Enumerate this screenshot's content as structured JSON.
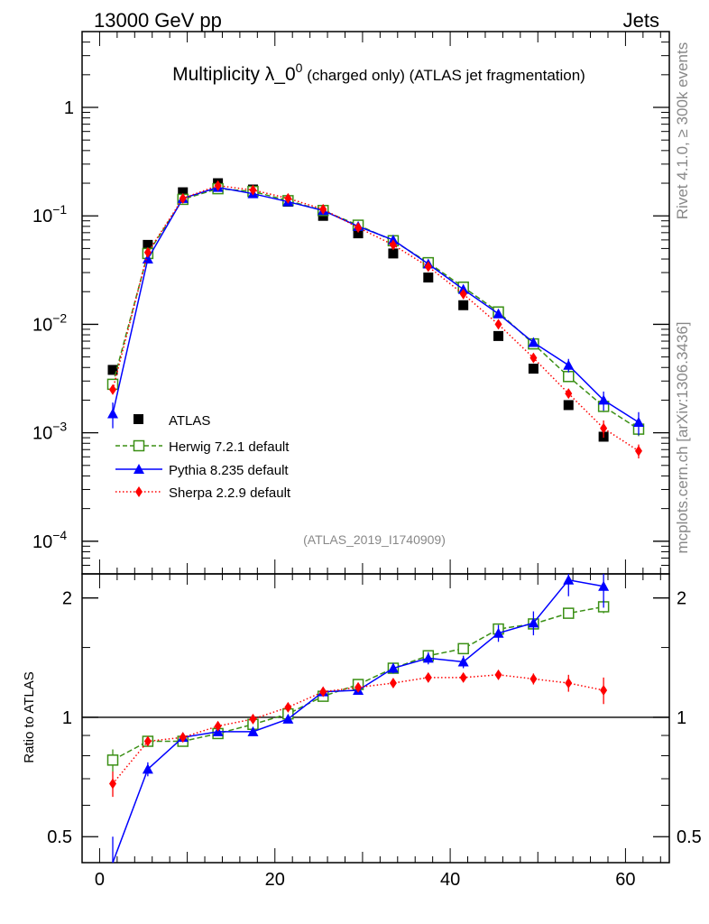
{
  "header": {
    "left": "13000 GeV pp",
    "right": "Jets"
  },
  "side": {
    "top": "Rivet 4.1.0, ≥ 300k events",
    "bottom": "mcplots.cern.ch [arXiv:1306.3436]"
  },
  "chart_data": [
    {
      "type": "scatter",
      "title": "Multiplicity λ_0",
      "title_sup": "0",
      "title_suffix": " (charged only) (ATLAS jet fragmentation)",
      "analysis_label": "(ATLAS_2019_I1740909)",
      "xlabel": "",
      "ylabel": "",
      "yscale": "log",
      "xlim": [
        -2,
        65
      ],
      "ylim": [
        5e-05,
        5
      ],
      "yticks": [
        {
          "value": 1,
          "base": "1",
          "exp": ""
        },
        {
          "value": 0.1,
          "base": "10",
          "exp": "−1"
        },
        {
          "value": 0.01,
          "base": "10",
          "exp": "−2"
        },
        {
          "value": 0.001,
          "base": "10",
          "exp": "−3"
        },
        {
          "value": 0.0001,
          "base": "10",
          "exp": "−4"
        }
      ],
      "series": [
        {
          "name": "ATLAS",
          "color": "#000000",
          "marker": "square-filled",
          "line": "none",
          "x": [
            1.5,
            5.5,
            9.5,
            13.5,
            17.5,
            21.5,
            25.5,
            29.5,
            33.5,
            37.5,
            41.5,
            45.5,
            49.5,
            53.5,
            57.5
          ],
          "y": [
            0.0038,
            0.054,
            0.165,
            0.2,
            0.175,
            0.135,
            0.1,
            0.069,
            0.045,
            0.027,
            0.015,
            0.0078,
            0.0039,
            0.0018,
            0.00092
          ]
        },
        {
          "name": "Herwig 7.2.1 default",
          "color": "#3a8f14",
          "marker": "square-open",
          "line": "dashed",
          "x": [
            1.5,
            5.5,
            9.5,
            13.5,
            17.5,
            21.5,
            25.5,
            29.5,
            33.5,
            37.5,
            41.5,
            45.5,
            49.5,
            53.5,
            57.5,
            61.5
          ],
          "y": [
            0.0028,
            0.045,
            0.142,
            0.178,
            0.168,
            0.138,
            0.112,
            0.082,
            0.059,
            0.037,
            0.022,
            0.013,
            0.0066,
            0.0033,
            0.00175,
            0.00108
          ],
          "yerr": [
            0.0002,
            0.001,
            0.002,
            0.002,
            0.002,
            0.002,
            0.002,
            0.0015,
            0.001,
            0.0008,
            0.0005,
            0.0004,
            0.0003,
            0.0003,
            0.0002,
            0.00015
          ]
        },
        {
          "name": "Pythia 8.235 default",
          "color": "#0000ff",
          "marker": "triangle-filled",
          "line": "solid",
          "x": [
            1.5,
            5.5,
            9.5,
            13.5,
            17.5,
            21.5,
            25.5,
            29.5,
            33.5,
            37.5,
            41.5,
            45.5,
            49.5,
            53.5,
            57.5,
            61.5
          ],
          "y": [
            0.0015,
            0.04,
            0.145,
            0.183,
            0.16,
            0.135,
            0.112,
            0.08,
            0.06,
            0.036,
            0.021,
            0.0125,
            0.0068,
            0.0042,
            0.002,
            0.00125
          ],
          "yerr": [
            0.0004,
            0.002,
            0.003,
            0.003,
            0.002,
            0.002,
            0.002,
            0.002,
            0.0015,
            0.0012,
            0.0008,
            0.0006,
            0.0006,
            0.0006,
            0.0004,
            0.0003
          ]
        },
        {
          "name": "Sherpa 2.2.9 default",
          "color": "#ff0000",
          "marker": "diamond-filled",
          "line": "dotted",
          "x": [
            1.5,
            5.5,
            9.5,
            13.5,
            17.5,
            21.5,
            25.5,
            29.5,
            33.5,
            37.5,
            41.5,
            45.5,
            49.5,
            53.5,
            57.5,
            61.5
          ],
          "y": [
            0.0025,
            0.046,
            0.145,
            0.19,
            0.173,
            0.145,
            0.115,
            0.078,
            0.054,
            0.034,
            0.019,
            0.01,
            0.0049,
            0.0023,
            0.0011,
            0.00068
          ],
          "yerr": [
            0.0002,
            0.001,
            0.002,
            0.002,
            0.002,
            0.002,
            0.002,
            0.0015,
            0.001,
            0.0008,
            0.0005,
            0.0004,
            0.0003,
            0.0002,
            0.0002,
            0.0001
          ]
        }
      ]
    },
    {
      "type": "scatter",
      "title": "",
      "xlabel": "",
      "ylabel": "Ratio to ATLAS",
      "yscale": "log",
      "xlim": [
        -2,
        65
      ],
      "ylim": [
        0.43,
        2.3
      ],
      "xticks": [
        0,
        20,
        40,
        60
      ],
      "xtick_labels": [
        "0",
        "20",
        "40",
        "60"
      ],
      "yticks": [
        0.5,
        1,
        2
      ],
      "ytick_labels": [
        "0.5",
        "1",
        "2"
      ],
      "reference_line": 1,
      "series": [
        {
          "name": "Herwig 7.2.1 default",
          "color": "#3a8f14",
          "marker": "square-open",
          "line": "dashed",
          "x": [
            1.5,
            5.5,
            9.5,
            13.5,
            17.5,
            21.5,
            25.5,
            29.5,
            33.5,
            37.5,
            41.5,
            45.5,
            49.5,
            53.5,
            57.5
          ],
          "y": [
            0.78,
            0.87,
            0.87,
            0.91,
            0.96,
            1.02,
            1.13,
            1.21,
            1.33,
            1.43,
            1.49,
            1.67,
            1.72,
            1.83,
            1.9
          ],
          "yerr": [
            0.05,
            0.01,
            0.01,
            0.01,
            0.01,
            0.01,
            0.01,
            0.01,
            0.02,
            0.02,
            0.02,
            0.03,
            0.05,
            0.05,
            0.07
          ]
        },
        {
          "name": "Pythia 8.235 default",
          "color": "#0000ff",
          "marker": "triangle-filled",
          "line": "solid",
          "x": [
            1.5,
            5.5,
            9.5,
            13.5,
            17.5,
            21.5,
            25.5,
            29.5,
            33.5,
            37.5,
            41.5,
            45.5,
            49.5,
            53.5,
            57.5
          ],
          "y": [
            0.4,
            0.74,
            0.89,
            0.92,
            0.92,
            0.99,
            1.16,
            1.17,
            1.33,
            1.41,
            1.38,
            1.63,
            1.73,
            2.22,
            2.14
          ],
          "yerr": [
            0.1,
            0.03,
            0.02,
            0.02,
            0.01,
            0.01,
            0.02,
            0.02,
            0.04,
            0.05,
            0.05,
            0.08,
            0.12,
            0.2,
            0.25
          ]
        },
        {
          "name": "Sherpa 2.2.9 default",
          "color": "#ff0000",
          "marker": "diamond-filled",
          "line": "dotted",
          "x": [
            1.5,
            5.5,
            9.5,
            13.5,
            17.5,
            21.5,
            25.5,
            29.5,
            33.5,
            37.5,
            41.5,
            45.5,
            49.5,
            53.5,
            57.5
          ],
          "y": [
            0.68,
            0.87,
            0.89,
            0.95,
            0.99,
            1.06,
            1.16,
            1.19,
            1.22,
            1.26,
            1.26,
            1.28,
            1.25,
            1.22,
            1.17
          ],
          "yerr": [
            0.05,
            0.01,
            0.01,
            0.01,
            0.01,
            0.01,
            0.01,
            0.02,
            0.02,
            0.02,
            0.02,
            0.03,
            0.04,
            0.06,
            0.09
          ]
        }
      ]
    }
  ]
}
